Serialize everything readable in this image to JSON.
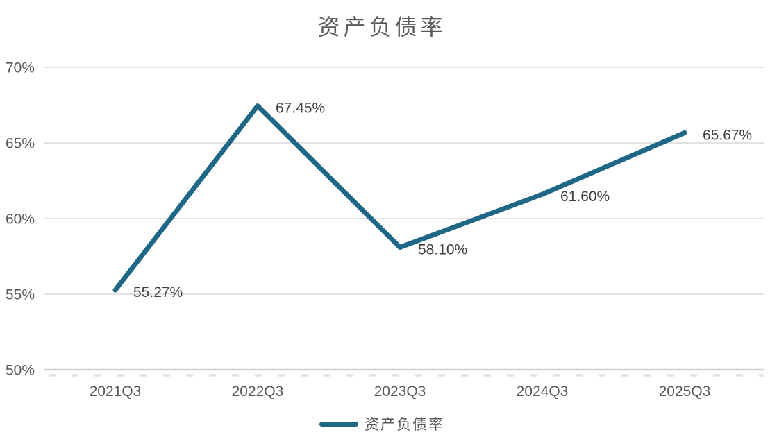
{
  "chart_data": {
    "type": "line",
    "title": "资产负债率",
    "categories": [
      "2021Q3",
      "2022Q3",
      "2023Q3",
      "2024Q3",
      "2025Q3"
    ],
    "series": [
      {
        "name": "资产负债率",
        "values": [
          55.27,
          67.45,
          58.1,
          61.6,
          65.67
        ]
      }
    ],
    "data_labels": [
      "55.27%",
      "67.45%",
      "58.10%",
      "61.60%",
      "65.67%"
    ],
    "xlabel": "",
    "ylabel": "",
    "ylim": [
      50,
      70
    ],
    "ytick_step": 5,
    "ytick_labels": [
      "50%",
      "55%",
      "60%",
      "65%",
      "70%"
    ],
    "grid": true,
    "legend_position": "bottom",
    "colors": {
      "line": "#1F6787",
      "grid": "#D9D9D9",
      "axis_line": "#D0D0D0",
      "minor_ticks": "#E2E2E2",
      "axis_labels": "#595959",
      "data_labels": "#404040",
      "title": "#595959",
      "background": "#FFFFFF"
    }
  }
}
